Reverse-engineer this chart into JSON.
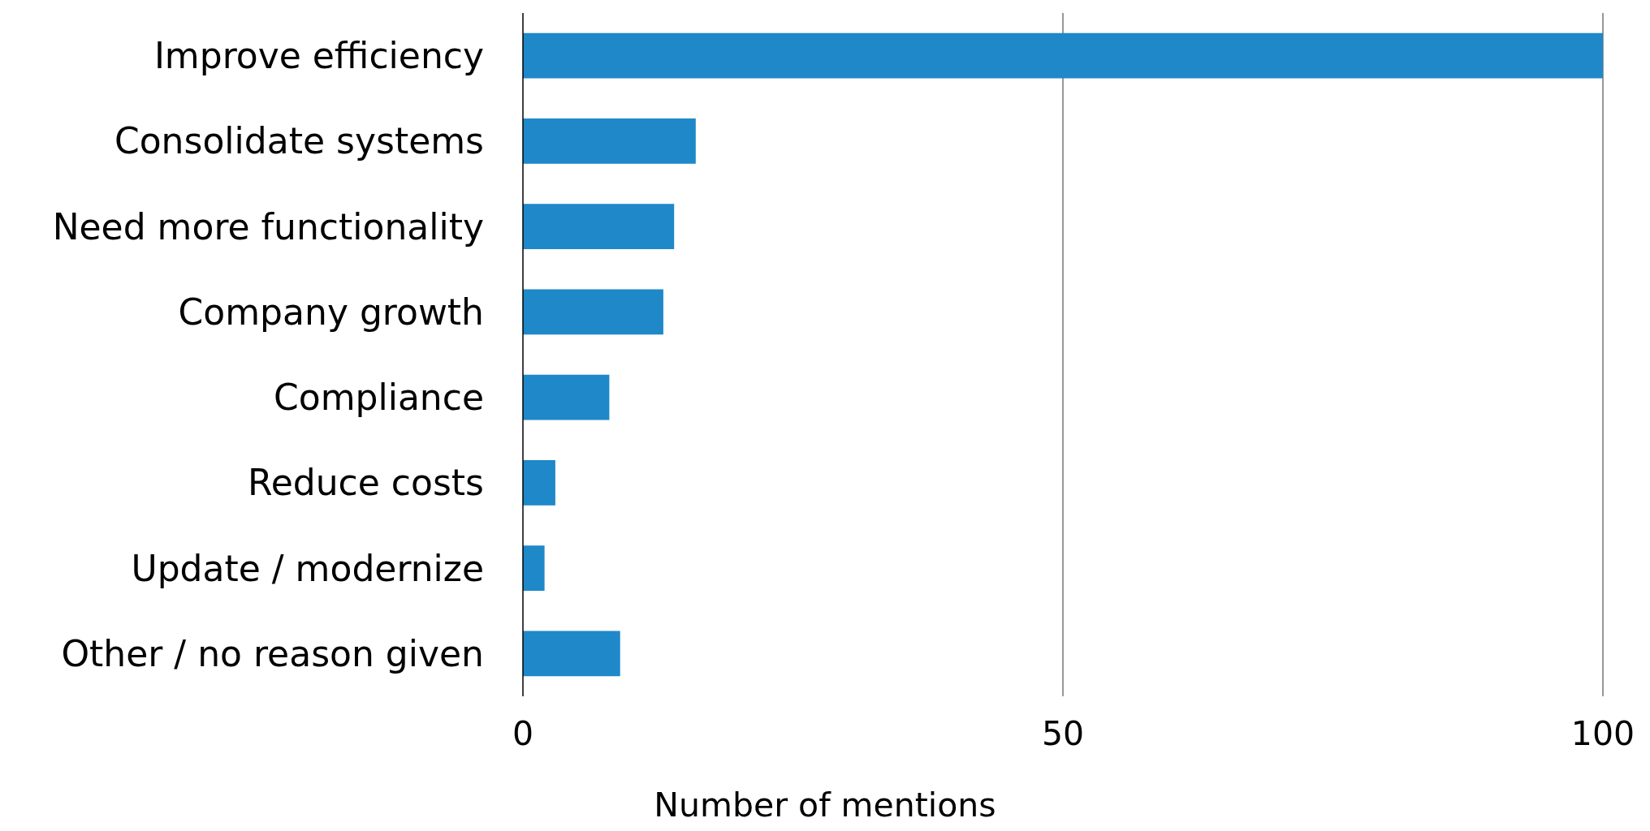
{
  "chart_data": {
    "type": "bar",
    "orientation": "horizontal",
    "xlabel": "Number of mentions",
    "categories": [
      "Improve efficiency",
      "Consolidate systems",
      "Need more functionality",
      "Company growth",
      "Compliance",
      "Reduce costs",
      "Update / modernize",
      "Other / no reason given"
    ],
    "values": [
      100,
      16,
      14,
      13,
      8,
      3,
      2,
      9
    ],
    "color": "#1f88c8",
    "xlim": [
      0,
      100
    ],
    "xticks": [
      0,
      50,
      100
    ],
    "grid": "x"
  }
}
